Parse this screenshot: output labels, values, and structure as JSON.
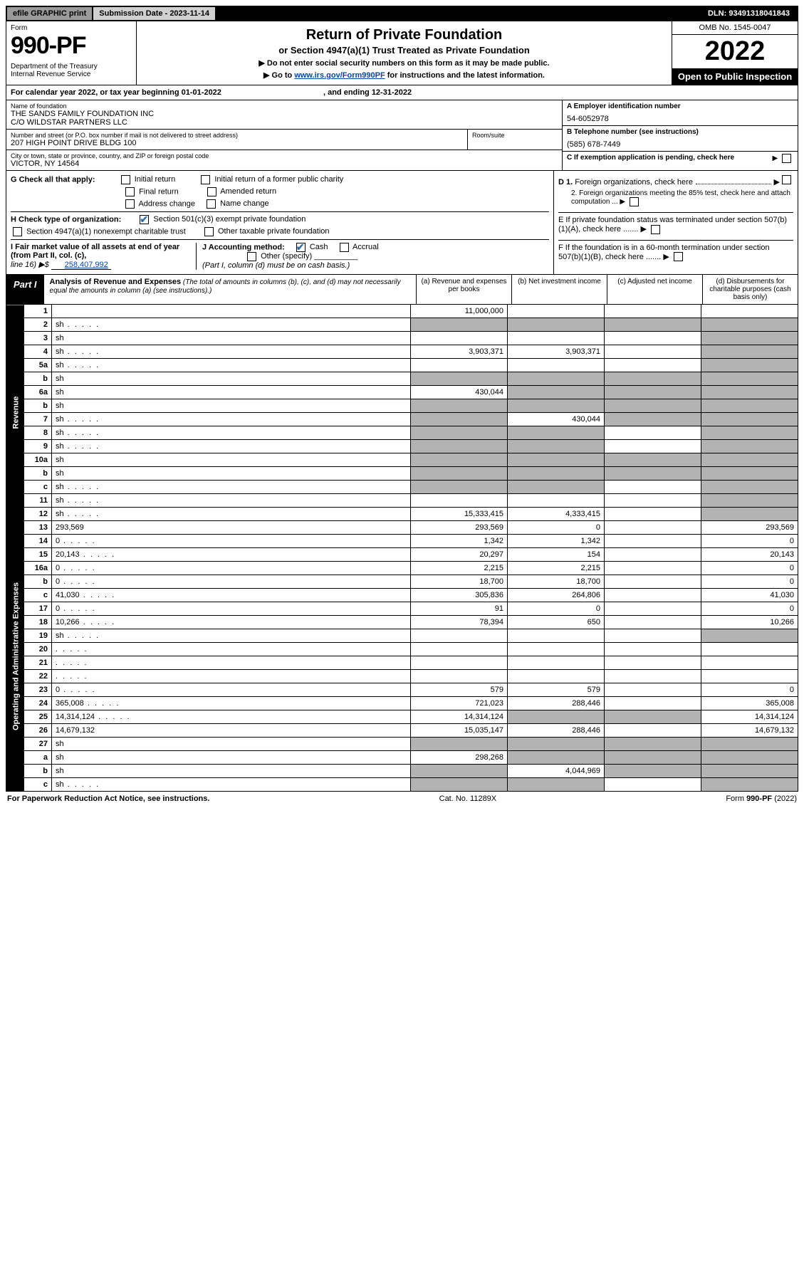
{
  "topbar": {
    "efile": "efile GRAPHIC print",
    "submission_label": "Submission Date - 2023-11-14",
    "dln": "DLN: 93491318041843"
  },
  "header": {
    "form_label": "Form",
    "form_no": "990-PF",
    "dept": "Department of the Treasury",
    "irs": "Internal Revenue Service",
    "title1": "Return of Private Foundation",
    "title2": "or Section 4947(a)(1) Trust Treated as Private Foundation",
    "note1": "▶ Do not enter social security numbers on this form as it may be made public.",
    "note2_pre": "▶ Go to ",
    "note2_link": "www.irs.gov/Form990PF",
    "note2_post": " for instructions and the latest information.",
    "omb": "OMB No. 1545-0047",
    "year": "2022",
    "open": "Open to Public Inspection"
  },
  "calendar": {
    "text1": "For calendar year 2022, or tax year beginning 01-01-2022",
    "text2": ", and ending 12-31-2022"
  },
  "info": {
    "name_label": "Name of foundation",
    "name1": "THE SANDS FAMILY FOUNDATION INC",
    "name2": "C/O WILDSTAR PARTNERS LLC",
    "addr_label": "Number and street (or P.O. box number if mail is not delivered to street address)",
    "addr": "207 HIGH POINT DRIVE BLDG 100",
    "room_label": "Room/suite",
    "city_label": "City or town, state or province, country, and ZIP or foreign postal code",
    "city": "VICTOR, NY  14564",
    "ein_label": "A Employer identification number",
    "ein": "54-6052978",
    "tel_label": "B Telephone number (see instructions)",
    "tel": "(585) 678-7449",
    "c_label": "C If exemption application is pending, check here",
    "d1": "D 1. Foreign organizations, check here",
    "d2": "2. Foreign organizations meeting the 85% test, check here and attach computation ...",
    "e_label": "E  If private foundation status was terminated under section 507(b)(1)(A), check here .......",
    "f_label": "F  If the foundation is in a 60-month termination under section 507(b)(1)(B), check here .......",
    "g_label": "G Check all that apply:",
    "g_opts": [
      "Initial return",
      "Initial return of a former public charity",
      "Final return",
      "Amended return",
      "Address change",
      "Name change"
    ],
    "h_label": "H Check type of organization:",
    "h1": "Section 501(c)(3) exempt private foundation",
    "h2": "Section 4947(a)(1) nonexempt charitable trust",
    "h3": "Other taxable private foundation",
    "i_label": "I Fair market value of all assets at end of year (from Part II, col. (c),",
    "i_line": "line 16) ▶$",
    "i_val": "258,407,992",
    "j_label": "J Accounting method:",
    "j_cash": "Cash",
    "j_accrual": "Accrual",
    "j_other": "Other (specify)",
    "j_note": "(Part I, column (d) must be on cash basis.)"
  },
  "part1": {
    "label": "Part I",
    "title": "Analysis of Revenue and Expenses",
    "sub": " (The total of amounts in columns (b), (c), and (d) may not necessarily equal the amounts in column (a) (see instructions).)",
    "cols": {
      "a": "(a)  Revenue and expenses per books",
      "b": "(b)  Net investment income",
      "c": "(c)  Adjusted net income",
      "d": "(d)  Disbursements for charitable purposes (cash basis only)"
    }
  },
  "sides": {
    "rev": "Revenue",
    "exp": "Operating and Administrative Expenses"
  },
  "rows": [
    {
      "n": "1",
      "d": "",
      "a": "11,000,000",
      "b": "",
      "c": "",
      "shade_c": true,
      "shade_d": true
    },
    {
      "n": "2",
      "d": "sh",
      "dots": true,
      "a": "sh",
      "b": "sh",
      "c": "sh"
    },
    {
      "n": "3",
      "d": "sh",
      "a": "",
      "b": "",
      "c": ""
    },
    {
      "n": "4",
      "d": "sh",
      "dots": true,
      "a": "3,903,371",
      "b": "3,903,371",
      "c": ""
    },
    {
      "n": "5a",
      "d": "sh",
      "dots": true,
      "a": "",
      "b": "",
      "c": ""
    },
    {
      "n": "b",
      "d": "sh",
      "a": "sh",
      "b": "sh",
      "c": "sh"
    },
    {
      "n": "6a",
      "d": "sh",
      "a": "430,044",
      "b": "sh",
      "c": "sh"
    },
    {
      "n": "b",
      "d": "sh",
      "a": "sh",
      "b": "sh",
      "c": "sh"
    },
    {
      "n": "7",
      "d": "sh",
      "dots": true,
      "a": "sh",
      "b": "430,044",
      "c": "sh"
    },
    {
      "n": "8",
      "d": "sh",
      "dots": true,
      "a": "sh",
      "b": "sh",
      "c": ""
    },
    {
      "n": "9",
      "d": "sh",
      "dots": true,
      "a": "sh",
      "b": "sh",
      "c": ""
    },
    {
      "n": "10a",
      "d": "sh",
      "a": "sh",
      "b": "sh",
      "c": "sh"
    },
    {
      "n": "b",
      "d": "sh",
      "a": "sh",
      "b": "sh",
      "c": "sh"
    },
    {
      "n": "c",
      "d": "sh",
      "dots": true,
      "a": "sh",
      "b": "sh",
      "c": ""
    },
    {
      "n": "11",
      "d": "sh",
      "dots": true,
      "a": "",
      "b": "",
      "c": ""
    },
    {
      "n": "12",
      "d": "sh",
      "dots": true,
      "a": "15,333,415",
      "b": "4,333,415",
      "c": ""
    }
  ],
  "exp_rows": [
    {
      "n": "13",
      "d": "293,569",
      "a": "293,569",
      "b": "0",
      "c": ""
    },
    {
      "n": "14",
      "d": "0",
      "dots": true,
      "a": "1,342",
      "b": "1,342",
      "c": ""
    },
    {
      "n": "15",
      "d": "20,143",
      "dots": true,
      "a": "20,297",
      "b": "154",
      "c": ""
    },
    {
      "n": "16a",
      "d": "0",
      "dots": true,
      "a": "2,215",
      "b": "2,215",
      "c": ""
    },
    {
      "n": "b",
      "d": "0",
      "dots": true,
      "a": "18,700",
      "b": "18,700",
      "c": ""
    },
    {
      "n": "c",
      "d": "41,030",
      "dots": true,
      "a": "305,836",
      "b": "264,806",
      "c": ""
    },
    {
      "n": "17",
      "d": "0",
      "dots": true,
      "a": "91",
      "b": "0",
      "c": ""
    },
    {
      "n": "18",
      "d": "10,266",
      "dots": true,
      "a": "78,394",
      "b": "650",
      "c": ""
    },
    {
      "n": "19",
      "d": "sh",
      "dots": true,
      "a": "",
      "b": "",
      "c": ""
    },
    {
      "n": "20",
      "d": "",
      "dots": true,
      "a": "",
      "b": "",
      "c": ""
    },
    {
      "n": "21",
      "d": "",
      "dots": true,
      "a": "",
      "b": "",
      "c": ""
    },
    {
      "n": "22",
      "d": "",
      "dots": true,
      "a": "",
      "b": "",
      "c": ""
    },
    {
      "n": "23",
      "d": "0",
      "dots": true,
      "a": "579",
      "b": "579",
      "c": ""
    },
    {
      "n": "24",
      "d": "365,008",
      "dots": true,
      "a": "721,023",
      "b": "288,446",
      "c": ""
    },
    {
      "n": "25",
      "d": "14,314,124",
      "dots": true,
      "a": "14,314,124",
      "b": "sh",
      "c": "sh"
    },
    {
      "n": "26",
      "d": "14,679,132",
      "a": "15,035,147",
      "b": "288,446",
      "c": ""
    },
    {
      "n": "27",
      "d": "sh",
      "a": "sh",
      "b": "sh",
      "c": "sh"
    },
    {
      "n": "a",
      "d": "sh",
      "a": "298,268",
      "b": "sh",
      "c": "sh"
    },
    {
      "n": "b",
      "d": "sh",
      "a": "sh",
      "b": "4,044,969",
      "c": "sh"
    },
    {
      "n": "c",
      "d": "sh",
      "dots": true,
      "a": "sh",
      "b": "sh",
      "c": ""
    }
  ],
  "footer": {
    "left": "For Paperwork Reduction Act Notice, see instructions.",
    "center": "Cat. No. 11289X",
    "right": "Form 990-PF (2022)"
  },
  "colors": {
    "shade": "#b3b3b3",
    "link": "#0645ad",
    "check": "#2f6fab"
  }
}
